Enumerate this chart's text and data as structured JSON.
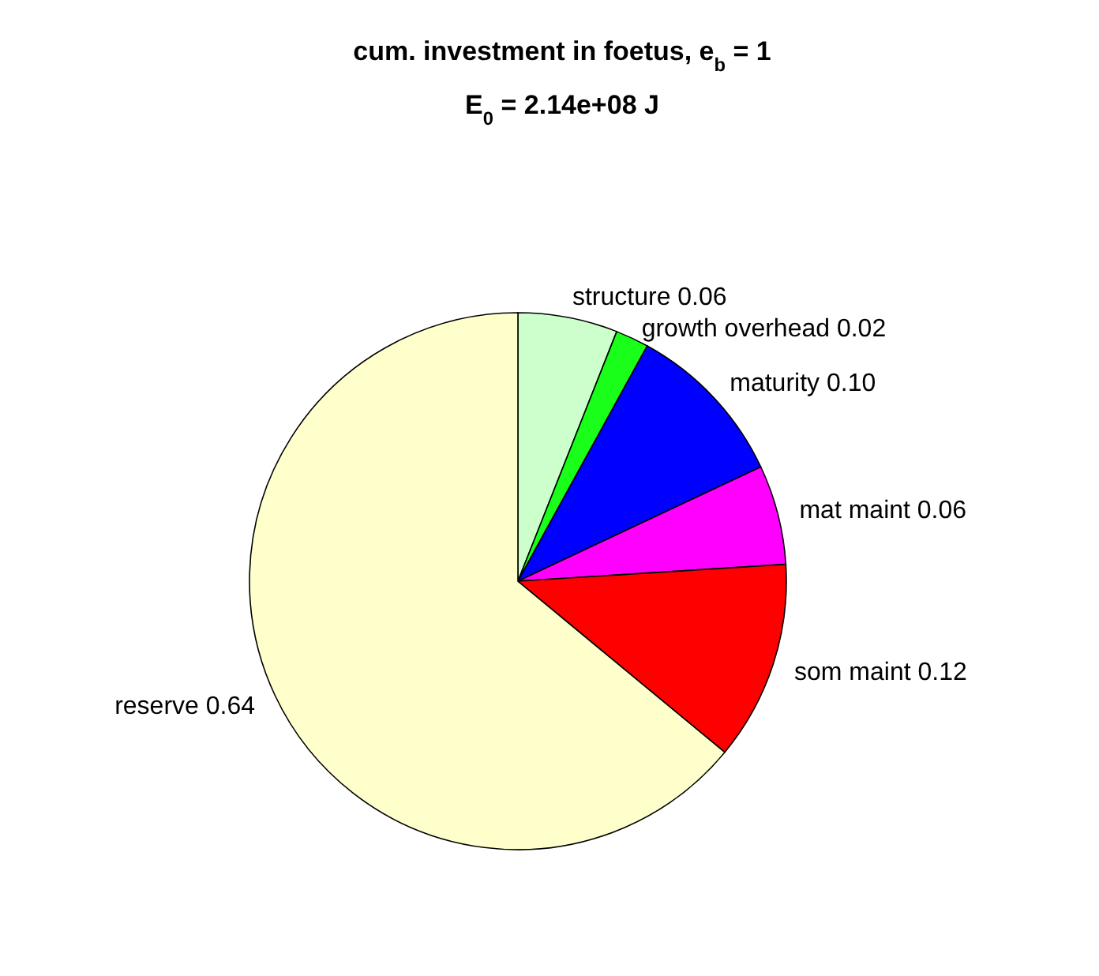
{
  "chart_data": {
    "type": "pie",
    "title": "cum. investment in foetus, e$_{b}$ = 1",
    "subtitle": "E$_{0}$ = 2.14e+08 J",
    "categories": [
      "structure",
      "growth overhead",
      "maturity",
      "mat maint",
      "som maint",
      "reserve"
    ],
    "values": [
      0.06,
      0.02,
      0.1,
      0.06,
      0.12,
      0.64
    ],
    "value_labels": [
      "0.06",
      "0.02",
      "0.10",
      "0.06",
      "0.12",
      "0.64"
    ],
    "colors": [
      "#ccffcc",
      "#19ff19",
      "#0000ff",
      "#ff00ff",
      "#ff0000",
      "#ffffcc"
    ]
  }
}
